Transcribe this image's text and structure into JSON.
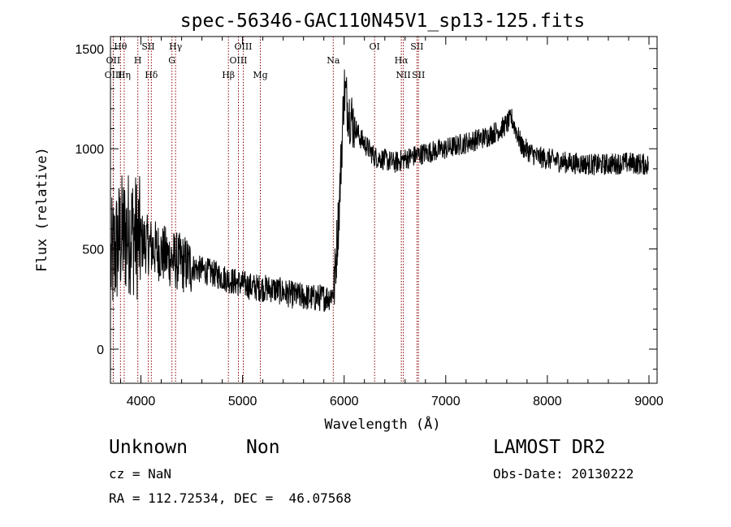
{
  "chart_data": {
    "type": "line",
    "title": "spec-56346-GAC110N45V1_sp13-125.fits",
    "xlabel": "Wavelength (Å)",
    "ylabel": "Flux (relative)",
    "xlim": [
      3700,
      9080
    ],
    "ylim": [
      -170,
      1560
    ],
    "xticks": [
      4000,
      5000,
      6000,
      7000,
      8000,
      9000
    ],
    "yticks": [
      0,
      500,
      1000,
      1500
    ],
    "line_color": "#000000",
    "line_marker_color": "#8b0000",
    "lines": [
      {
        "label": "Hθ",
        "wave": 3798,
        "row": 0
      },
      {
        "label": "OII",
        "wave": 3727,
        "row": 1
      },
      {
        "label": "OIII",
        "wave": 3729,
        "row": 2
      },
      {
        "label": "Hη",
        "wave": 3835,
        "row": 2
      },
      {
        "label": "SII",
        "wave": 4072,
        "row": 0
      },
      {
        "label": "H",
        "wave": 3969,
        "row": 1
      },
      {
        "label": "Hδ",
        "wave": 4102,
        "row": 2
      },
      {
        "label": "Hγ",
        "wave": 4340,
        "row": 0
      },
      {
        "label": "G",
        "wave": 4305,
        "row": 1
      },
      {
        "label": "OIII",
        "wave": 5007,
        "row": 0
      },
      {
        "label": "OIII",
        "wave": 4959,
        "row": 1
      },
      {
        "label": "Hβ",
        "wave": 4861,
        "row": 2
      },
      {
        "label": "Mg",
        "wave": 5175,
        "row": 2
      },
      {
        "label": "Na",
        "wave": 5893,
        "row": 1
      },
      {
        "label": "OI",
        "wave": 6300,
        "row": 0
      },
      {
        "label": "SII",
        "wave": 6717,
        "row": 0
      },
      {
        "label": "Hα",
        "wave": 6563,
        "row": 1
      },
      {
        "label": "NII",
        "wave": 6583,
        "row": 2
      },
      {
        "label": "SII",
        "wave": 6731,
        "row": 2
      }
    ],
    "continuum": [
      [
        3700,
        420
      ],
      [
        3800,
        560
      ],
      [
        3900,
        590
      ],
      [
        4000,
        540
      ],
      [
        4100,
        510
      ],
      [
        4300,
        450
      ],
      [
        4500,
        410
      ],
      [
        4700,
        380
      ],
      [
        4900,
        340
      ],
      [
        5100,
        310
      ],
      [
        5300,
        300
      ],
      [
        5500,
        270
      ],
      [
        5700,
        255
      ],
      [
        5850,
        260
      ],
      [
        5900,
        290
      ],
      [
        5950,
        700
      ],
      [
        6000,
        1300
      ],
      [
        6050,
        1180
      ],
      [
        6150,
        1060
      ],
      [
        6300,
        960
      ],
      [
        6500,
        930
      ],
      [
        6600,
        950
      ],
      [
        6800,
        980
      ],
      [
        7000,
        1000
      ],
      [
        7200,
        1030
      ],
      [
        7400,
        1060
      ],
      [
        7550,
        1100
      ],
      [
        7650,
        1150
      ],
      [
        7750,
        1010
      ],
      [
        7900,
        960
      ],
      [
        8200,
        930
      ],
      [
        8500,
        920
      ],
      [
        8800,
        930
      ],
      [
        9000,
        920
      ]
    ]
  },
  "info": {
    "class_label": "Unknown",
    "subclass_label": "Non",
    "cz": "cz = NaN",
    "coords": "RA = 112.72534, DEC =  46.07568",
    "survey": "LAMOST DR2",
    "obs_date": "Obs-Date: 20130222"
  }
}
